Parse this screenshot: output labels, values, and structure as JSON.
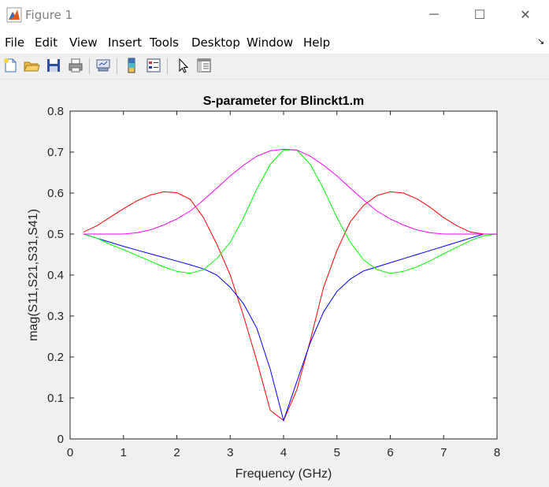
{
  "window": {
    "title": "Figure 1",
    "controls": {
      "minimize": "─",
      "maximize": "☐",
      "close": "✕"
    }
  },
  "menu": [
    "File",
    "Edit",
    "View",
    "Insert",
    "Tools",
    "Desktop",
    "Window",
    "Help"
  ],
  "toolbar": {
    "icons": [
      "new-figure-icon",
      "open-file-icon",
      "save-figure-icon",
      "print-figure-icon",
      "link-plot-icon",
      "insert-colorbar-icon",
      "insert-legend-icon",
      "edit-plot-icon",
      "property-inspector-icon"
    ]
  },
  "chart_data": {
    "type": "line",
    "title": "S-parameter for Blinckt1.m",
    "xlabel": "Frequency (GHz)",
    "ylabel": "mag(S11,S21,S31,S41)",
    "xlim": [
      0,
      8
    ],
    "ylim": [
      0,
      0.8
    ],
    "xticks": [
      "0",
      "1",
      "2",
      "3",
      "4",
      "5",
      "6",
      "7",
      "8"
    ],
    "yticks": [
      "0",
      "0.1",
      "0.2",
      "0.3",
      "0.4",
      "0.5",
      "0.6",
      "0.7",
      "0.8"
    ],
    "grid": false,
    "x": [
      0.25,
      0.5,
      0.75,
      1.0,
      1.25,
      1.5,
      1.75,
      2.0,
      2.25,
      2.5,
      2.75,
      3.0,
      3.25,
      3.5,
      3.75,
      4.0,
      4.25,
      4.5,
      4.75,
      5.0,
      5.25,
      5.5,
      5.75,
      6.0,
      6.25,
      6.5,
      6.75,
      7.0,
      7.25,
      7.5,
      7.75,
      8.0
    ],
    "series": [
      {
        "color": "#ff0000",
        "values": [
          0.505,
          0.52,
          0.541,
          0.562,
          0.581,
          0.595,
          0.603,
          0.601,
          0.585,
          0.54,
          0.475,
          0.4,
          0.3,
          0.19,
          0.07,
          0.045,
          0.12,
          0.24,
          0.37,
          0.46,
          0.53,
          0.57,
          0.594,
          0.603,
          0.6,
          0.586,
          0.565,
          0.54,
          0.52,
          0.505,
          0.5,
          0.5
        ]
      },
      {
        "color": "#0000ff",
        "values": [
          0.5,
          0.49,
          0.48,
          0.47,
          0.461,
          0.452,
          0.443,
          0.434,
          0.425,
          0.415,
          0.4,
          0.37,
          0.33,
          0.27,
          0.17,
          0.045,
          0.14,
          0.235,
          0.31,
          0.36,
          0.39,
          0.41,
          0.42,
          0.43,
          0.44,
          0.45,
          0.46,
          0.47,
          0.48,
          0.49,
          0.5,
          0.5
        ]
      },
      {
        "color": "#00ff00",
        "values": [
          0.5,
          0.49,
          0.475,
          0.462,
          0.448,
          0.434,
          0.42,
          0.409,
          0.404,
          0.413,
          0.44,
          0.48,
          0.54,
          0.61,
          0.67,
          0.705,
          0.705,
          0.67,
          0.61,
          0.54,
          0.48,
          0.437,
          0.413,
          0.404,
          0.409,
          0.42,
          0.435,
          0.452,
          0.468,
          0.484,
          0.496,
          0.5
        ]
      },
      {
        "color": "#ff00ff",
        "values": [
          0.5,
          0.5,
          0.5,
          0.5,
          0.503,
          0.51,
          0.522,
          0.537,
          0.556,
          0.583,
          0.612,
          0.642,
          0.668,
          0.69,
          0.703,
          0.707,
          0.705,
          0.69,
          0.668,
          0.642,
          0.612,
          0.583,
          0.556,
          0.537,
          0.522,
          0.51,
          0.503,
          0.5,
          0.5,
          0.5,
          0.5,
          0.5
        ]
      }
    ]
  }
}
